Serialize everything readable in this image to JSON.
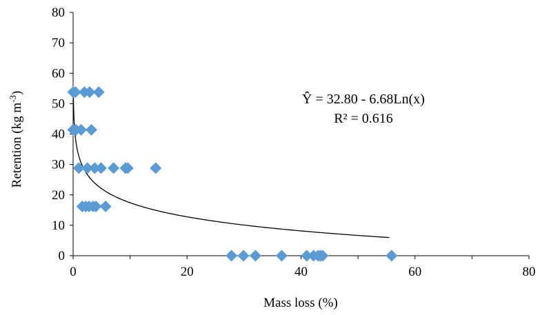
{
  "chart_data": {
    "type": "scatter",
    "title": "",
    "xlabel": "Mass loss (%)",
    "ylabel_main": "Retention (kg m",
    "ylabel_sup": "-3",
    "ylabel_close": ")",
    "xlim": [
      0,
      80
    ],
    "ylim": [
      0,
      80
    ],
    "x_ticks": [
      "0",
      "20",
      "40",
      "60",
      "80"
    ],
    "y_ticks": [
      "0",
      "10",
      "20",
      "30",
      "40",
      "50",
      "60",
      "70",
      "80"
    ],
    "grid": false,
    "legend": "none",
    "marker_color": "#5b9bd5",
    "marker": "diamond",
    "points": [
      {
        "x": 0.0,
        "y": 53.8
      },
      {
        "x": 0.4,
        "y": 53.8
      },
      {
        "x": 2.0,
        "y": 53.8
      },
      {
        "x": 2.9,
        "y": 53.8
      },
      {
        "x": 4.5,
        "y": 53.8
      },
      {
        "x": 0.0,
        "y": 41.4
      },
      {
        "x": 0.5,
        "y": 41.4
      },
      {
        "x": 1.4,
        "y": 41.4
      },
      {
        "x": 3.2,
        "y": 41.4
      },
      {
        "x": 1.0,
        "y": 28.8
      },
      {
        "x": 2.5,
        "y": 28.8
      },
      {
        "x": 3.8,
        "y": 28.8
      },
      {
        "x": 4.9,
        "y": 28.8
      },
      {
        "x": 7.1,
        "y": 28.8
      },
      {
        "x": 9.2,
        "y": 28.8
      },
      {
        "x": 9.6,
        "y": 28.8
      },
      {
        "x": 14.5,
        "y": 28.8
      },
      {
        "x": 1.6,
        "y": 16.2
      },
      {
        "x": 2.2,
        "y": 16.2
      },
      {
        "x": 2.8,
        "y": 16.2
      },
      {
        "x": 3.5,
        "y": 16.2
      },
      {
        "x": 4.0,
        "y": 16.2
      },
      {
        "x": 5.7,
        "y": 16.2
      },
      {
        "x": 27.8,
        "y": 0
      },
      {
        "x": 29.9,
        "y": 0
      },
      {
        "x": 32.0,
        "y": 0
      },
      {
        "x": 36.6,
        "y": 0
      },
      {
        "x": 41.0,
        "y": 0
      },
      {
        "x": 42.2,
        "y": 0
      },
      {
        "x": 43.0,
        "y": 0
      },
      {
        "x": 43.4,
        "y": 0
      },
      {
        "x": 43.8,
        "y": 0
      },
      {
        "x": 55.9,
        "y": 0
      }
    ],
    "trendline": {
      "type": "logarithmic",
      "a": 32.8,
      "b": -6.68,
      "x_range": [
        0.02,
        55.5
      ],
      "color": "#000000"
    },
    "annotations": {
      "equation": "Ŷ = 32.80 - 6.68Ln(x)",
      "r_squared": "R² = 0.616"
    }
  }
}
